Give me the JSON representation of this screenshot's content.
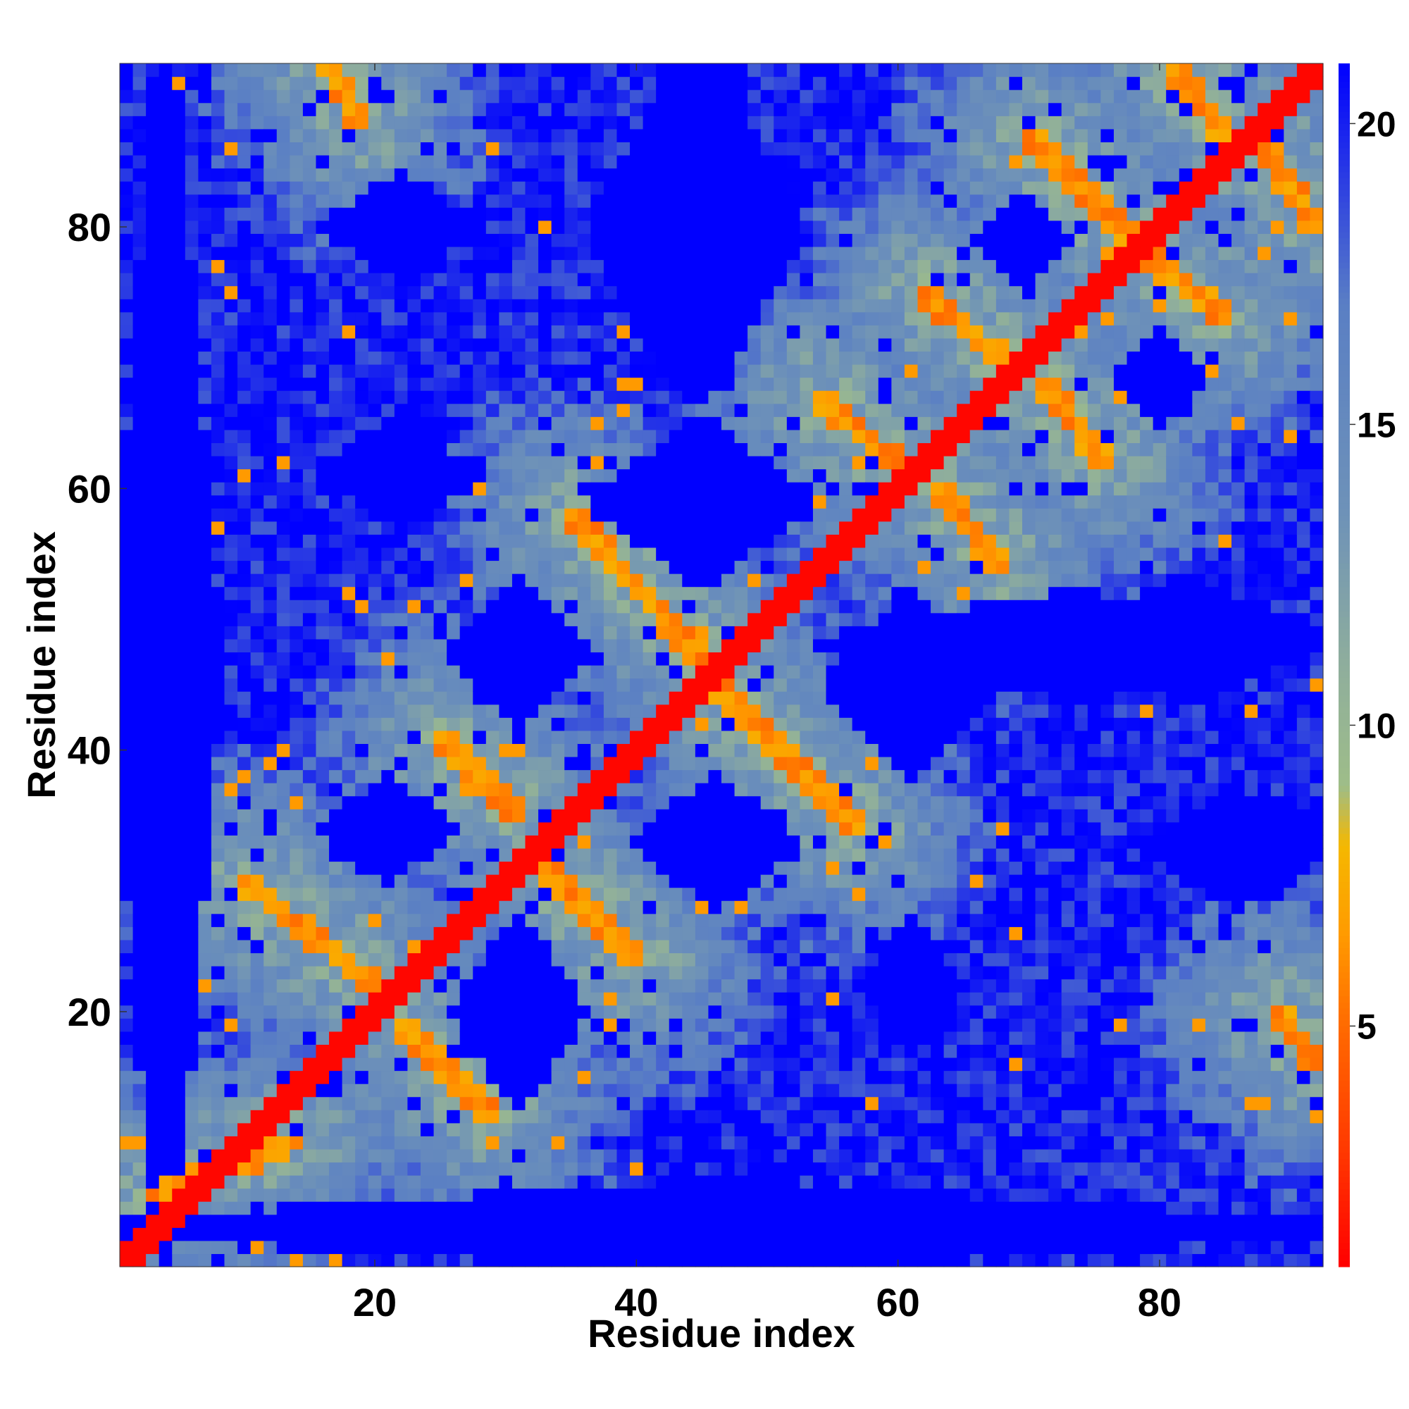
{
  "chart_data": {
    "type": "heatmap",
    "title": "",
    "xlabel": "Residue index",
    "ylabel": "Residue index",
    "n_residues": 92,
    "xlim": [
      1,
      92
    ],
    "ylim": [
      1,
      92
    ],
    "x_ticks": [
      20,
      40,
      60,
      80
    ],
    "y_ticks": [
      20,
      40,
      60,
      80
    ],
    "colorbar": {
      "range": [
        1,
        21
      ],
      "ticks": [
        5,
        10,
        15,
        20
      ],
      "colors": [
        "#ff0000",
        "#ff3a00",
        "#ff6a00",
        "#ff9a00",
        "#f5b800",
        "#9ebd88",
        "#8fae9c",
        "#6e92b8",
        "#5a7fc4",
        "#0000ff"
      ],
      "stops": [
        1,
        3,
        5,
        6.5,
        8,
        9,
        11,
        13.5,
        17,
        21
      ]
    },
    "description_of_values": "Inter-residue distance map; diagonal band ~1 (red), beta/helix contacts 5-8 (orange), medium distances 10-18 (green/steel blue), far >20 (blue)",
    "contact_segments": [
      {
        "from": [
          1,
          1
        ],
        "to": [
          92,
          92
        ],
        "value": 1.5
      },
      {
        "from": [
          3,
          6
        ],
        "to": [
          14,
          10
        ],
        "value": 6
      },
      {
        "from": [
          10,
          30
        ],
        "to": [
          20,
          22
        ],
        "value": 6
      },
      {
        "from": [
          22,
          19
        ],
        "to": [
          29,
          12
        ],
        "value": 6
      },
      {
        "from": [
          25,
          41
        ],
        "to": [
          31,
          35
        ],
        "value": 6
      },
      {
        "from": [
          33,
          31
        ],
        "to": [
          40,
          24
        ],
        "value": 6
      },
      {
        "from": [
          35,
          58
        ],
        "to": [
          45,
          47
        ],
        "value": 6
      },
      {
        "from": [
          46,
          45
        ],
        "to": [
          57,
          34
        ],
        "value": 6
      },
      {
        "from": [
          54,
          67
        ],
        "to": [
          61,
          61
        ],
        "value": 6
      },
      {
        "from": [
          63,
          60
        ],
        "to": [
          68,
          54
        ],
        "value": 6
      },
      {
        "from": [
          62,
          75
        ],
        "to": [
          69,
          69
        ],
        "value": 6
      },
      {
        "from": [
          71,
          68
        ],
        "to": [
          76,
          62
        ],
        "value": 6
      },
      {
        "from": [
          70,
          87
        ],
        "to": [
          78,
          79
        ],
        "value": 6
      },
      {
        "from": [
          79,
          78
        ],
        "to": [
          85,
          73
        ],
        "value": 6
      },
      {
        "from": [
          81,
          92
        ],
        "to": [
          86,
          86
        ],
        "value": 6
      },
      {
        "from": [
          88,
          86
        ],
        "to": [
          92,
          80
        ],
        "value": 6
      },
      {
        "from": [
          89,
          20
        ],
        "to": [
          92,
          16
        ],
        "value": 6
      },
      {
        "from": [
          16,
          93
        ],
        "to": [
          19,
          88
        ],
        "value": 6
      }
    ],
    "far_regions": [
      {
        "x": [
          1,
          7
        ],
        "y": [
          1,
          92
        ]
      },
      {
        "x": [
          1,
          92
        ],
        "y": [
          1,
          6
        ]
      },
      {
        "x": [
          27,
          35
        ],
        "y": [
          14,
          26
        ]
      },
      {
        "x": [
          27,
          35
        ],
        "y": [
          43,
          52
        ]
      },
      {
        "x": [
          17,
          25
        ],
        "y": [
          31,
          37
        ]
      },
      {
        "x": [
          41,
          51
        ],
        "y": [
          29,
          37
        ]
      },
      {
        "x": [
          58,
          64
        ],
        "y": [
          18,
          26
        ]
      },
      {
        "x": [
          56,
          66
        ],
        "y": [
          39,
          51
        ]
      },
      {
        "x": [
          38,
          52
        ],
        "y": [
          54,
          64
        ]
      },
      {
        "x": [
          17,
          27
        ],
        "y": [
          58,
          64
        ]
      },
      {
        "x": [
          17,
          27
        ],
        "y": [
          77,
          83
        ]
      },
      {
        "x": [
          38,
          51
        ],
        "y": [
          68,
          92
        ]
      },
      {
        "x": [
          67,
          72
        ],
        "y": [
          76,
          82
        ]
      },
      {
        "x": [
          77,
          83
        ],
        "y": [
          66,
          71
        ]
      },
      {
        "x": [
          72,
          92
        ],
        "y": [
          45,
          52
        ]
      },
      {
        "x": [
          55,
          92
        ],
        "y": [
          45,
          51
        ]
      },
      {
        "x": [
          80,
          92
        ],
        "y": [
          29,
          36
        ]
      }
    ]
  }
}
